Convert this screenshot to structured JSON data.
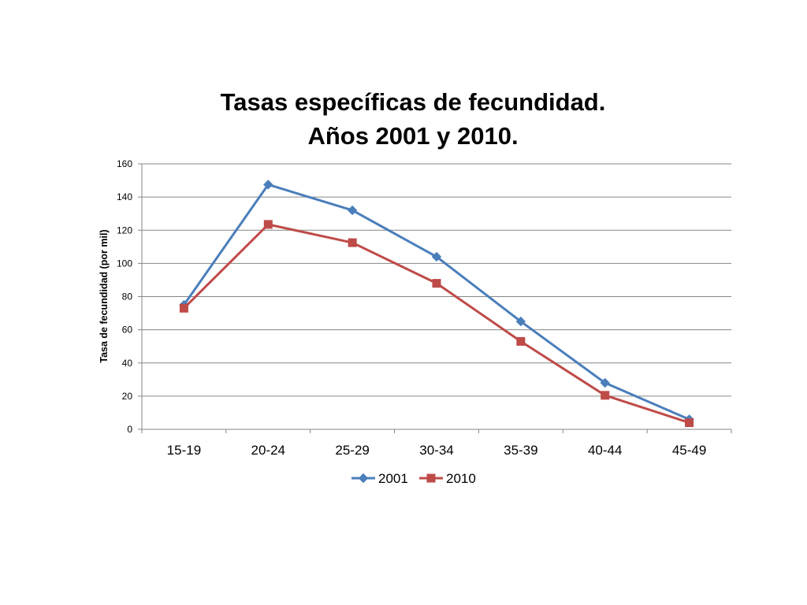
{
  "chart_data": {
    "type": "line",
    "title": "Tasas específicas de fecundidad.",
    "subtitle": "Años 2001 y 2010.",
    "xlabel": "",
    "ylabel": "Tasa de fecundidad (por mil)",
    "categories": [
      "15-19",
      "20-24",
      "25-29",
      "30-34",
      "35-39",
      "40-44",
      "45-49"
    ],
    "ylim": [
      0,
      160
    ],
    "yticks": [
      0,
      20,
      40,
      60,
      80,
      100,
      120,
      140,
      160
    ],
    "grid": "horizontal",
    "legend": "bottom",
    "series": [
      {
        "name": "2001",
        "color": "#4a7ebb",
        "marker": "diamond",
        "values": [
          75,
          147.5,
          132,
          104,
          65,
          28,
          6
        ]
      },
      {
        "name": "2010",
        "color": "#be4b48",
        "marker": "square",
        "values": [
          73,
          123.5,
          112.5,
          88,
          53,
          20.5,
          4
        ]
      }
    ]
  }
}
